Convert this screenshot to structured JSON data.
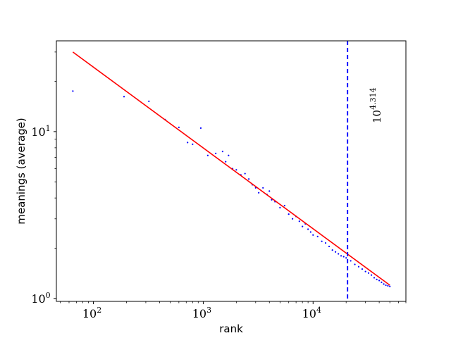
{
  "chart_data": {
    "type": "scatter",
    "title": "",
    "xlabel": "rank",
    "ylabel": "meanings (average)",
    "xscale": "log",
    "yscale": "log",
    "xlim": [
      46,
      70000
    ],
    "ylim": [
      0.96,
      35
    ],
    "x_ticks": [
      {
        "value": 100,
        "base": "10",
        "exp": "2"
      },
      {
        "value": 1000,
        "base": "10",
        "exp": "3"
      },
      {
        "value": 10000,
        "base": "10",
        "exp": "4"
      }
    ],
    "y_ticks": [
      {
        "value": 1,
        "label": "10",
        "exp": "0"
      },
      {
        "value": 10,
        "label": "10",
        "exp": "1"
      }
    ],
    "grid": false,
    "colors": {
      "points": "#0000ff",
      "fit": "#ff0000",
      "cutoff": "#0000ff"
    },
    "series": [
      {
        "kind": "points",
        "x": [
          65,
          190,
          320,
          450,
          600,
          720,
          800,
          950,
          1100,
          1300,
          1500,
          1600,
          1700,
          1850,
          2000,
          2200,
          2400,
          2600,
          2800,
          3000,
          3200,
          3500,
          3800,
          4000,
          4200,
          4500,
          5000,
          5500,
          6000,
          6500,
          7000,
          7500,
          8000,
          8500,
          9000,
          9500,
          10000,
          11000,
          12000,
          13000,
          14000,
          15000,
          16000,
          17000,
          18000,
          19000,
          20000,
          22000,
          24000,
          26000,
          28000,
          30000,
          32000,
          34000,
          36000,
          38000,
          40000,
          42000,
          44000,
          46000,
          48000,
          50000
        ],
        "y": [
          17.5,
          16.2,
          15.2,
          11.8,
          10.6,
          8.6,
          8.4,
          10.5,
          7.2,
          7.4,
          7.6,
          6.6,
          7.2,
          6.0,
          5.9,
          5.5,
          5.6,
          5.2,
          4.8,
          4.6,
          4.3,
          4.6,
          4.2,
          4.4,
          3.9,
          3.8,
          3.5,
          3.6,
          3.2,
          3.0,
          3.1,
          2.9,
          2.7,
          2.8,
          2.6,
          2.5,
          2.4,
          2.35,
          2.2,
          2.15,
          2.05,
          1.95,
          1.9,
          1.85,
          1.8,
          1.78,
          1.75,
          1.68,
          1.6,
          1.55,
          1.5,
          1.45,
          1.42,
          1.38,
          1.33,
          1.3,
          1.28,
          1.25,
          1.22,
          1.2,
          1.19,
          1.18
        ]
      },
      {
        "kind": "fit-line",
        "x": [
          65,
          50000
        ],
        "y": [
          30,
          1.2
        ]
      }
    ],
    "cutoff": {
      "x": 20606,
      "annotation_base": "10",
      "annotation_exp": "4.314"
    }
  }
}
